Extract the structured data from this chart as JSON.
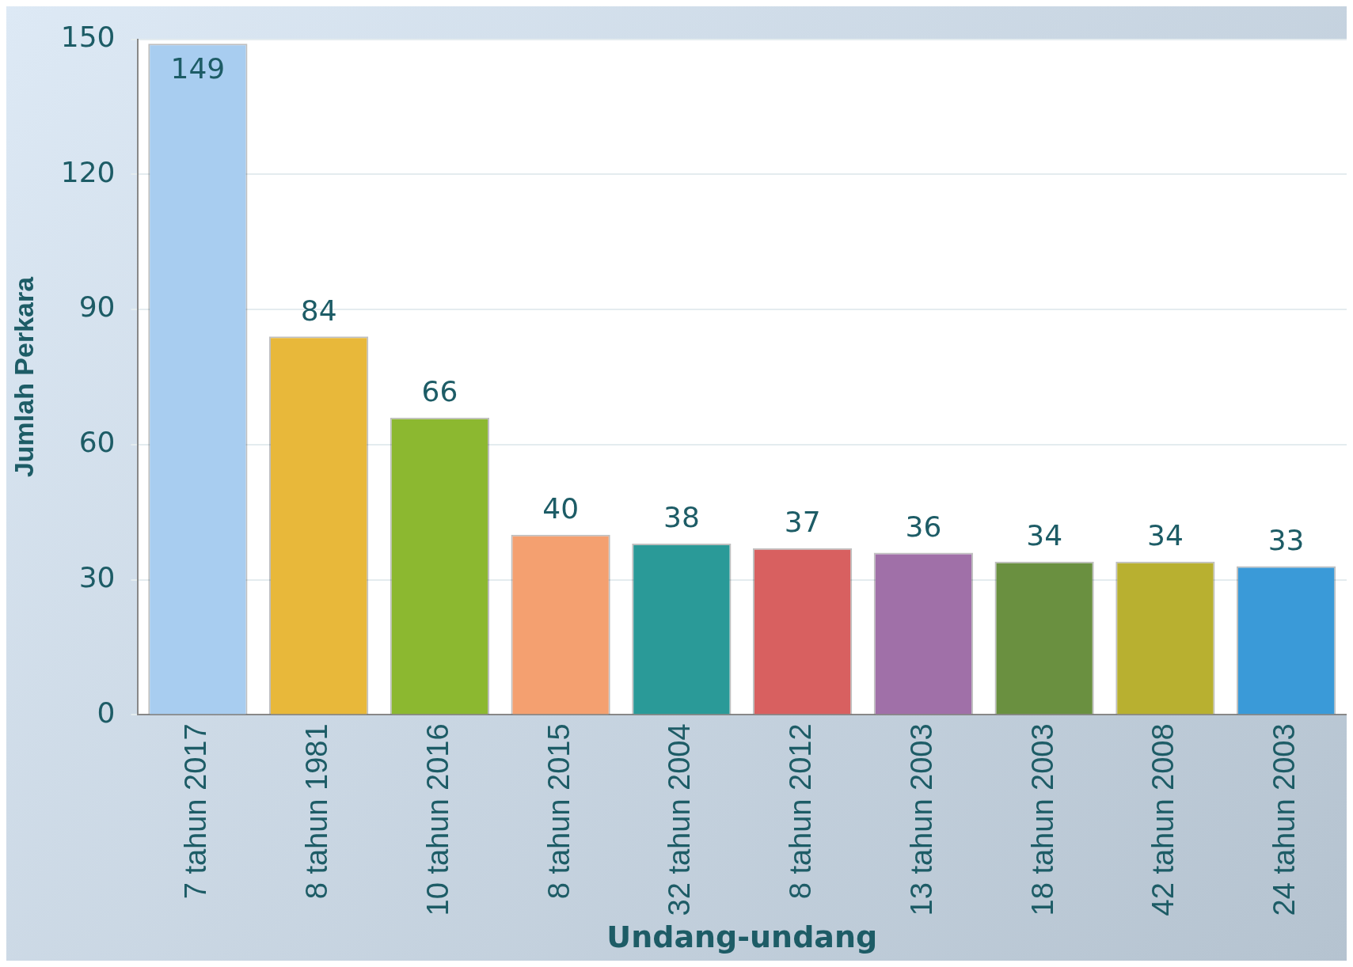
{
  "chart_data": {
    "type": "bar",
    "xlabel": "Undang-undang",
    "ylabel": "Jumlah Perkara",
    "categories": [
      "7 tahun 2017",
      "8 tahun 1981",
      "10 tahun 2016",
      "8 tahun 2015",
      "32 tahun 2004",
      "8 tahun 2012",
      "13 tahun 2003",
      "18 tahun 2003",
      "42 tahun 2008",
      "24 tahun 2003"
    ],
    "values": [
      149,
      84,
      66,
      40,
      38,
      37,
      36,
      34,
      34,
      33
    ],
    "colors": [
      "#a8cdf0",
      "#e8b83a",
      "#8cb830",
      "#f4a070",
      "#2a9a98",
      "#d86060",
      "#a070a8",
      "#6a9040",
      "#b8b030",
      "#3a9ad8"
    ],
    "ylim": [
      0,
      150
    ],
    "yticks": [
      0,
      30,
      60,
      90,
      120,
      150
    ],
    "grid": "y",
    "data_labels": true,
    "legend": false
  }
}
